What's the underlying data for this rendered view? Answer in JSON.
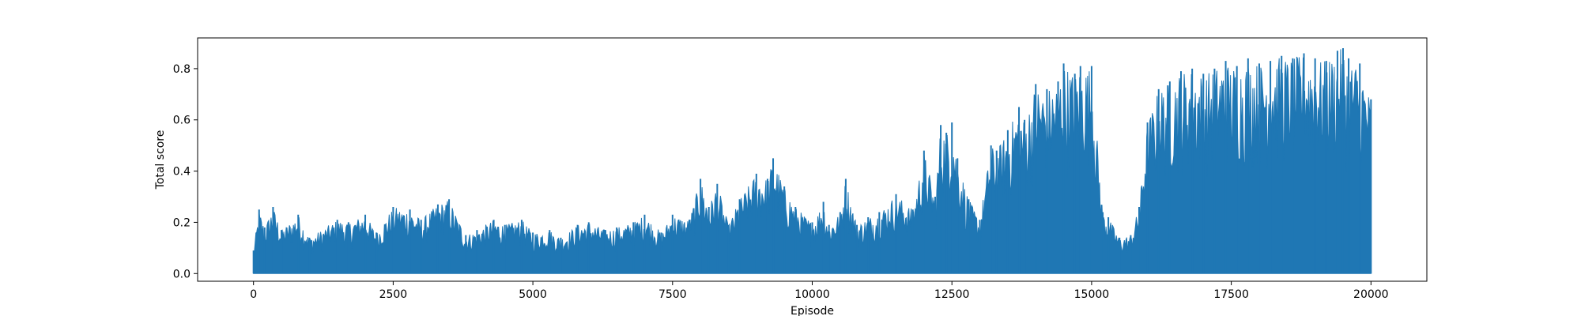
{
  "chart_data": {
    "type": "line",
    "title": "",
    "xlabel": "Episode",
    "ylabel": "Total score",
    "xlim": [
      -1000,
      21000
    ],
    "ylim": [
      -0.03,
      0.92
    ],
    "xticks": [
      0,
      2500,
      5000,
      7500,
      10000,
      12500,
      15000,
      17500,
      20000
    ],
    "yticks": [
      0.0,
      0.2,
      0.4,
      0.6,
      0.8
    ],
    "xtick_labels": [
      "0",
      "2500",
      "5000",
      "7500",
      "10000",
      "12500",
      "15000",
      "17500",
      "20000"
    ],
    "ytick_labels": [
      "0.0",
      "0.2",
      "0.4",
      "0.6",
      "0.8"
    ],
    "grid": false,
    "series": [
      {
        "color": "#1f77b4",
        "x": [
          0,
          100,
          200,
          350,
          500,
          800,
          1000,
          1500,
          1700,
          2000,
          2200,
          2500,
          2800,
          3000,
          3300,
          3500,
          3800,
          4000,
          4300,
          4500,
          4800,
          5000,
          5300,
          5500,
          5800,
          6000,
          6300,
          6500,
          6800,
          7000,
          7300,
          7500,
          7800,
          8000,
          8150,
          8300,
          8500,
          8700,
          9000,
          9200,
          9300,
          9500,
          9700,
          10000,
          10200,
          10300,
          10500,
          10600,
          10800,
          11000,
          11200,
          11500,
          11800,
          12000,
          12200,
          12300,
          12400,
          12500,
          12600,
          12800,
          13000,
          13200,
          13300,
          13500,
          13700,
          13800,
          14000,
          14200,
          14400,
          14500,
          14700,
          14800,
          15000,
          15200,
          15300,
          15500,
          15700,
          15850,
          16000,
          16200,
          16400,
          16600,
          16800,
          17000,
          17200,
          17400,
          17600,
          17800,
          18000,
          18200,
          18400,
          18600,
          18800,
          19000,
          19200,
          19400,
          19500,
          19600,
          19800,
          20000
        ],
        "y_max": [
          0.09,
          0.25,
          0.18,
          0.26,
          0.17,
          0.23,
          0.14,
          0.21,
          0.2,
          0.23,
          0.16,
          0.26,
          0.25,
          0.21,
          0.27,
          0.29,
          0.15,
          0.17,
          0.21,
          0.19,
          0.21,
          0.16,
          0.17,
          0.14,
          0.19,
          0.2,
          0.17,
          0.18,
          0.2,
          0.23,
          0.16,
          0.23,
          0.21,
          0.37,
          0.26,
          0.35,
          0.19,
          0.29,
          0.39,
          0.37,
          0.45,
          0.34,
          0.26,
          0.2,
          0.28,
          0.19,
          0.24,
          0.37,
          0.19,
          0.22,
          0.24,
          0.31,
          0.25,
          0.48,
          0.3,
          0.58,
          0.55,
          0.59,
          0.45,
          0.29,
          0.21,
          0.5,
          0.48,
          0.56,
          0.65,
          0.6,
          0.74,
          0.72,
          0.75,
          0.82,
          0.78,
          0.81,
          0.81,
          0.24,
          0.22,
          0.14,
          0.15,
          0.26,
          0.59,
          0.72,
          0.75,
          0.79,
          0.8,
          0.78,
          0.8,
          0.83,
          0.81,
          0.84,
          0.82,
          0.83,
          0.85,
          0.84,
          0.86,
          0.84,
          0.83,
          0.87,
          0.88,
          0.84,
          0.82,
          0.68
        ],
        "y_min": [
          0.0,
          0.0,
          0.0,
          0.0,
          0.0,
          0.0,
          0.0,
          0.0,
          0.0,
          0.0,
          0.0,
          0.0,
          0.0,
          0.0,
          0.0,
          0.0,
          0.0,
          0.0,
          0.0,
          0.0,
          0.0,
          0.0,
          0.0,
          0.0,
          0.0,
          0.0,
          0.0,
          0.0,
          0.0,
          0.0,
          0.0,
          0.0,
          0.0,
          0.0,
          0.0,
          0.0,
          0.0,
          0.0,
          0.0,
          0.0,
          0.0,
          0.0,
          0.0,
          0.0,
          0.0,
          0.0,
          0.0,
          0.0,
          0.0,
          0.0,
          0.0,
          0.0,
          0.0,
          0.0,
          0.0,
          0.0,
          0.0,
          0.0,
          0.0,
          0.0,
          0.0,
          0.0,
          0.0,
          0.0,
          0.0,
          0.0,
          0.0,
          0.0,
          0.0,
          0.0,
          0.0,
          0.0,
          0.0,
          0.0,
          0.0,
          0.0,
          0.0,
          0.0,
          0.0,
          0.0,
          0.0,
          0.0,
          0.0,
          0.0,
          0.0,
          0.0,
          0.0,
          0.0,
          0.0,
          0.0,
          0.0,
          0.0,
          0.0,
          0.0,
          0.0,
          0.0,
          0.0,
          0.0,
          0.0,
          0.0
        ]
      }
    ]
  }
}
